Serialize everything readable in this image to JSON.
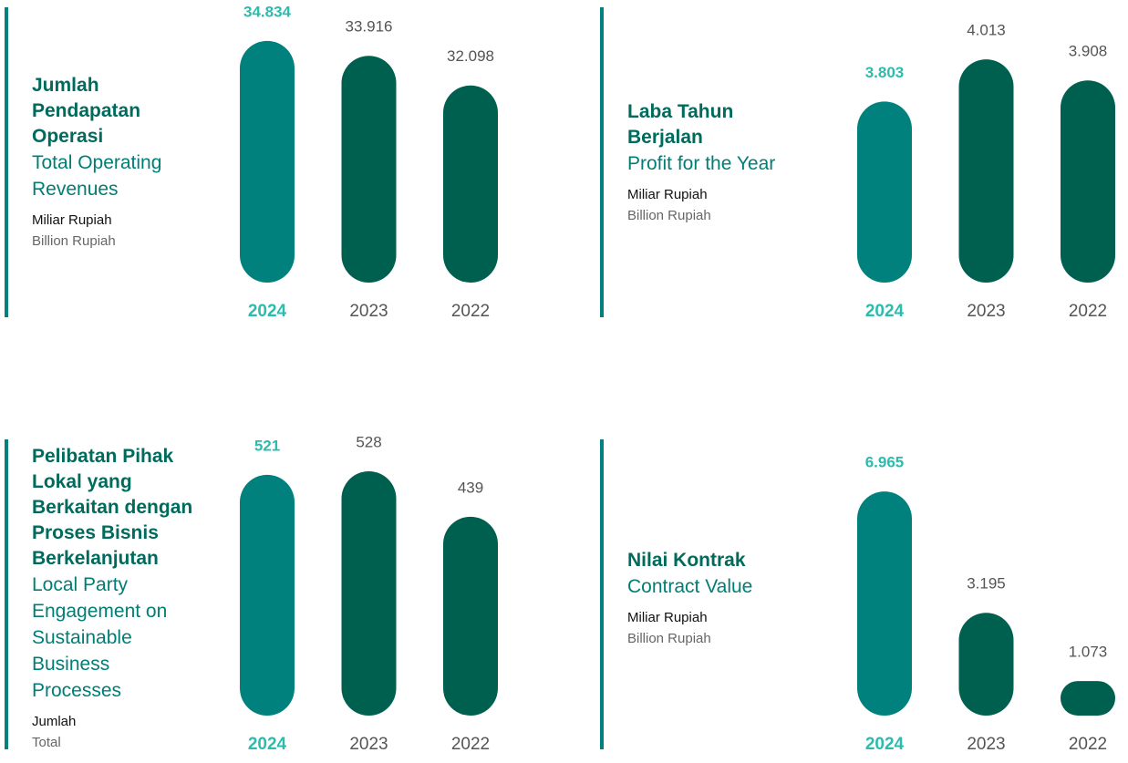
{
  "chart_data": [
    {
      "type": "bar",
      "title": "Jumlah Pendapatan Operasi",
      "subtitle": "Total Operating Revenues",
      "unit_labels": [
        "Miliar Rupiah",
        "Billion Rupiah"
      ],
      "categories": [
        "2024",
        "2023",
        "2022"
      ],
      "values": [
        34834,
        33916,
        32098
      ],
      "value_labels": [
        "34.834",
        "33.916",
        "32.098"
      ],
      "colors": [
        "#00817e",
        "#00604f",
        "#00604f"
      ],
      "ylim": [
        20000,
        36000
      ]
    },
    {
      "type": "bar",
      "title": "Laba Tahun Berjalan",
      "subtitle": "Profit for the Year",
      "unit_labels": [
        "Miliar Rupiah",
        "Billion Rupiah"
      ],
      "categories": [
        "2024",
        "2023",
        "2022"
      ],
      "values": [
        3803,
        4013,
        3908
      ],
      "value_labels": [
        "3.803",
        "4.013",
        "3.908"
      ],
      "colors": [
        "#00817e",
        "#00604f",
        "#00604f"
      ],
      "ylim": [
        2900,
        4200
      ]
    },
    {
      "type": "bar",
      "title": "Pelibatan Pihak Lokal yang Berkaitan dengan Proses Bisnis Berkelanjutan",
      "subtitle": "Local Party Engagement on Sustainable Business Processes",
      "unit_labels": [
        "Jumlah",
        "Total"
      ],
      "categories": [
        "2024",
        "2023",
        "2022"
      ],
      "values": [
        521,
        528,
        439
      ],
      "colors": [
        "#00817e",
        "#00604f",
        "#00604f"
      ],
      "ylim": [
        50,
        560
      ]
    },
    {
      "type": "bar",
      "title": "Nilai Kontrak",
      "subtitle": "Contract Value",
      "unit_labels": [
        "Miliar Rupiah",
        "Billion Rupiah"
      ],
      "categories": [
        "2024",
        "2023",
        "2022"
      ],
      "values": [
        6965,
        3195,
        1073
      ],
      "value_labels": [
        "6.965",
        "3.195",
        "1.073"
      ],
      "colors": [
        "#00817e",
        "#00604f",
        "#00604f"
      ],
      "ylim": [
        0,
        8100
      ]
    }
  ]
}
